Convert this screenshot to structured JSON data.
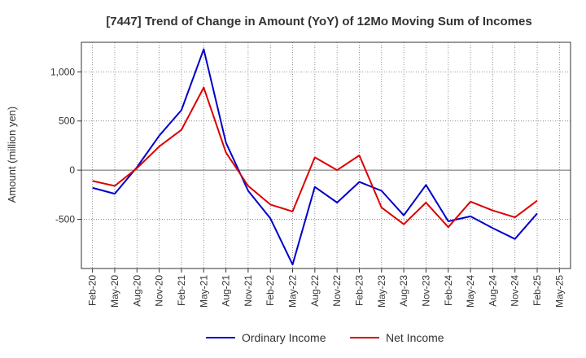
{
  "chart_data": {
    "type": "line",
    "title": "[7447]  Trend of Change in Amount (YoY) of 12Mo Moving Sum of Incomes",
    "xlabel": "",
    "ylabel": "Amount (million yen)",
    "categories": [
      "Feb-20",
      "May-20",
      "Aug-20",
      "Nov-20",
      "Feb-21",
      "May-21",
      "Aug-21",
      "Nov-21",
      "Feb-22",
      "May-22",
      "Aug-22",
      "Nov-22",
      "Feb-23",
      "May-23",
      "Aug-23",
      "Nov-23",
      "Feb-24",
      "May-24",
      "Aug-24",
      "Nov-24",
      "Feb-25",
      "May-25"
    ],
    "ylim": [
      -1000,
      1300
    ],
    "yticks": [
      -500,
      0,
      500,
      1000
    ],
    "ytick_labels": [
      "-500",
      "0",
      "500",
      "1,000"
    ],
    "grid": true,
    "legend_position": "bottom-center",
    "series": [
      {
        "name": "Ordinary Income",
        "color": "#0000cc",
        "values": [
          -180,
          -240,
          30,
          350,
          610,
          1230,
          280,
          -210,
          -490,
          -960,
          -170,
          -330,
          -120,
          -210,
          -460,
          -150,
          -520,
          -470,
          -590,
          -700,
          -440,
          null
        ]
      },
      {
        "name": "Net Income",
        "color": "#dd0000",
        "values": [
          -110,
          -160,
          20,
          240,
          410,
          840,
          180,
          -160,
          -350,
          -420,
          130,
          0,
          150,
          -380,
          -550,
          -330,
          -580,
          -320,
          -410,
          -480,
          -310,
          null
        ]
      }
    ]
  }
}
